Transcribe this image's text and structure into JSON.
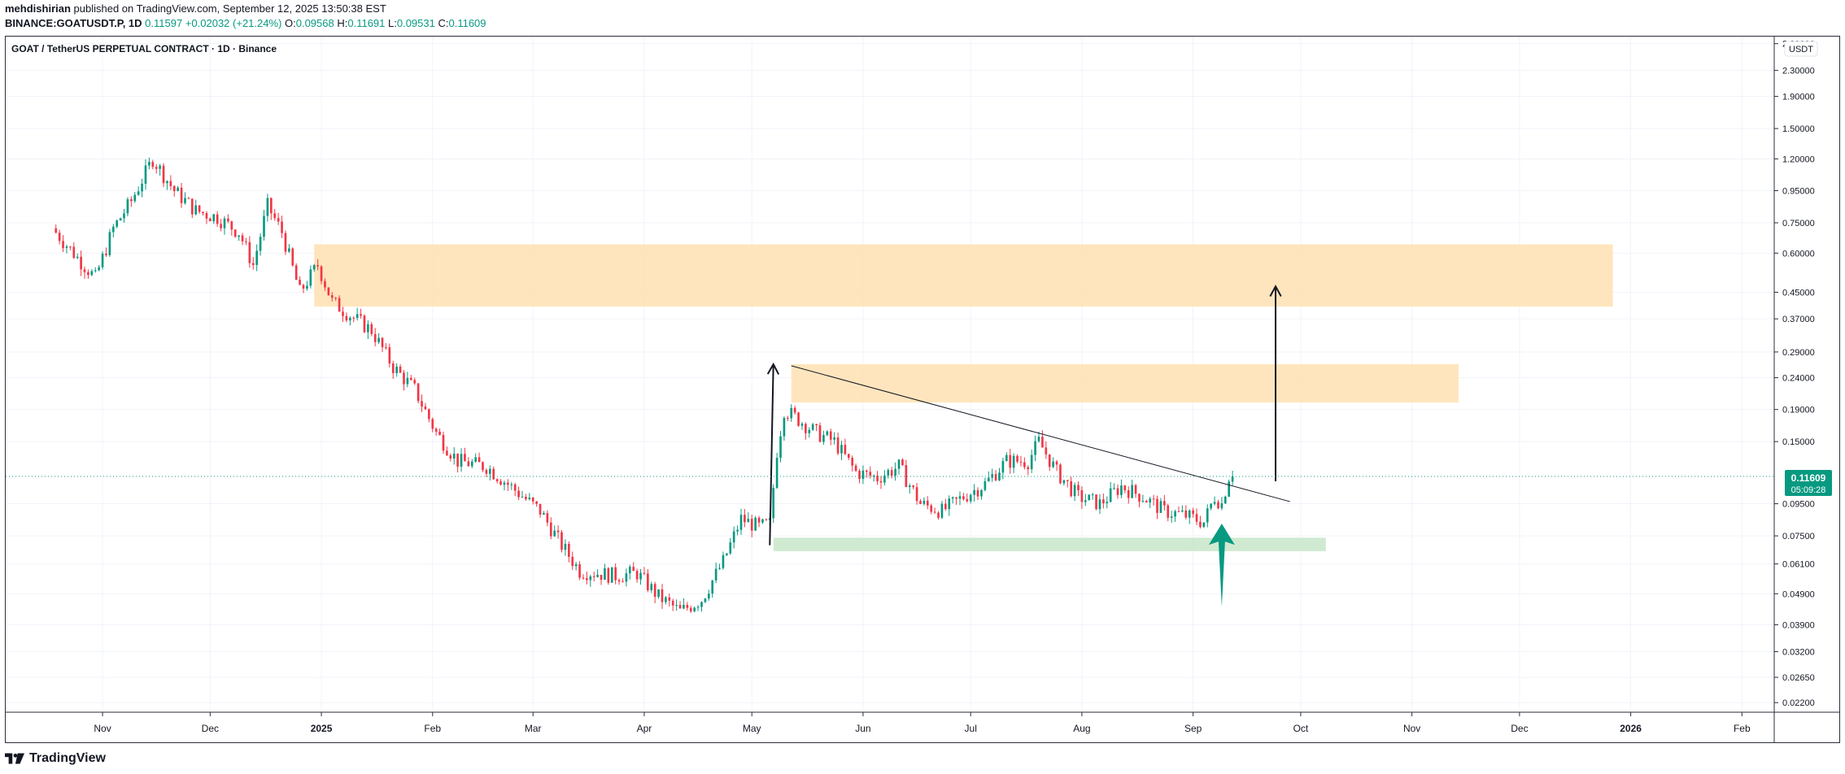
{
  "header": {
    "publisher": "mehdishirian",
    "published_text": " published on TradingView.com, September 12, 2025 13:50:38 EST",
    "symbol": "BINANCE:GOATUSDT.P, 1D",
    "last": "0.11597",
    "change": "+0.02032 (+21.24%)",
    "o_label": "O:",
    "o": "0.09568",
    "h_label": "H:",
    "h": "0.11691",
    "l_label": "L:",
    "l": "0.09531",
    "c_label": "C:",
    "c": "0.11609"
  },
  "footer": {
    "brand": "TradingView"
  },
  "chart_data": {
    "type": "candlestick",
    "title": "GOAT / TetherUS PERPETUAL CONTRACT · 1D · Binance",
    "currency": "USDT",
    "y_scale": "log",
    "ylim": [
      0.0205,
      2.95
    ],
    "x_range": [
      "2024-10-05",
      "2026-02-10"
    ],
    "y_ticks": [
      "2.80000",
      "2.30000",
      "1.90000",
      "1.50000",
      "1.20000",
      "0.95000",
      "0.75000",
      "0.60000",
      "0.45000",
      "0.37000",
      "0.29000",
      "0.24000",
      "0.19000",
      "0.15000",
      "0.09500",
      "0.07500",
      "0.06100",
      "0.04900",
      "0.03900",
      "0.03200",
      "0.02650",
      "0.02200"
    ],
    "x_ticks": [
      {
        "label": "Nov",
        "date": "2024-11-01"
      },
      {
        "label": "Dec",
        "date": "2024-12-01"
      },
      {
        "label": "2025",
        "date": "2025-01-01"
      },
      {
        "label": "Feb",
        "date": "2025-02-01"
      },
      {
        "label": "Mar",
        "date": "2025-03-01"
      },
      {
        "label": "Apr",
        "date": "2025-04-01"
      },
      {
        "label": "May",
        "date": "2025-05-01"
      },
      {
        "label": "Jun",
        "date": "2025-06-01"
      },
      {
        "label": "Jul",
        "date": "2025-07-01"
      },
      {
        "label": "Aug",
        "date": "2025-08-01"
      },
      {
        "label": "Sep",
        "date": "2025-09-01"
      },
      {
        "label": "Oct",
        "date": "2025-10-01"
      },
      {
        "label": "Nov",
        "date": "2025-11-01"
      },
      {
        "label": "Dec",
        "date": "2025-12-01"
      },
      {
        "label": "2026",
        "date": "2026-01-01"
      },
      {
        "label": "Feb",
        "date": "2026-02-01"
      }
    ],
    "price_path": [
      [
        "2024-10-19",
        0.72
      ],
      [
        "2024-10-26",
        0.58
      ],
      [
        "2024-10-31",
        0.5
      ],
      [
        "2024-11-05",
        0.72
      ],
      [
        "2024-11-10",
        0.88
      ],
      [
        "2024-11-16",
        1.2
      ],
      [
        "2024-11-22",
        0.95
      ],
      [
        "2024-11-28",
        0.82
      ],
      [
        "2024-12-04",
        0.78
      ],
      [
        "2024-12-10",
        0.7
      ],
      [
        "2024-12-14",
        0.55
      ],
      [
        "2024-12-18",
        0.85
      ],
      [
        "2024-12-22",
        0.7
      ],
      [
        "2024-12-27",
        0.45
      ],
      [
        "2025-01-01",
        0.55
      ],
      [
        "2025-01-05",
        0.42
      ],
      [
        "2025-01-10",
        0.38
      ],
      [
        "2025-01-16",
        0.34
      ],
      [
        "2025-01-22",
        0.26
      ],
      [
        "2025-01-28",
        0.22
      ],
      [
        "2025-02-03",
        0.16
      ],
      [
        "2025-02-09",
        0.13
      ],
      [
        "2025-02-17",
        0.125
      ],
      [
        "2025-02-25",
        0.105
      ],
      [
        "2025-03-04",
        0.09
      ],
      [
        "2025-03-10",
        0.07
      ],
      [
        "2025-03-15",
        0.058
      ],
      [
        "2025-03-25",
        0.056
      ],
      [
        "2025-03-31",
        0.057
      ],
      [
        "2025-04-06",
        0.048
      ],
      [
        "2025-04-12",
        0.043
      ],
      [
        "2025-04-18",
        0.047
      ],
      [
        "2025-04-24",
        0.062
      ],
      [
        "2025-04-29",
        0.085
      ],
      [
        "2025-05-04",
        0.08
      ],
      [
        "2025-05-07",
        0.082
      ],
      [
        "2025-05-09",
        0.14
      ],
      [
        "2025-05-11",
        0.19
      ],
      [
        "2025-05-14",
        0.18
      ],
      [
        "2025-05-20",
        0.16
      ],
      [
        "2025-05-25",
        0.15
      ],
      [
        "2025-05-31",
        0.12
      ],
      [
        "2025-06-06",
        0.115
      ],
      [
        "2025-06-12",
        0.125
      ],
      [
        "2025-06-18",
        0.095
      ],
      [
        "2025-06-24",
        0.09
      ],
      [
        "2025-06-30",
        0.1
      ],
      [
        "2025-07-06",
        0.11
      ],
      [
        "2025-07-12",
        0.13
      ],
      [
        "2025-07-18",
        0.13
      ],
      [
        "2025-07-21",
        0.15
      ],
      [
        "2025-07-26",
        0.12
      ],
      [
        "2025-08-01",
        0.1
      ],
      [
        "2025-08-07",
        0.095
      ],
      [
        "2025-08-13",
        0.108
      ],
      [
        "2025-08-19",
        0.1
      ],
      [
        "2025-08-25",
        0.09
      ],
      [
        "2025-08-31",
        0.087
      ],
      [
        "2025-09-05",
        0.083
      ],
      [
        "2025-09-08",
        0.1
      ],
      [
        "2025-09-10",
        0.095
      ],
      [
        "2025-09-12",
        0.11609
      ]
    ],
    "current_price": {
      "value": 0.11609,
      "label": "0.11609",
      "countdown": "05:09:28"
    },
    "zones": [
      {
        "color": "#ffe0b2",
        "from": "2024-12-30",
        "to": "2025-12-27",
        "low": 0.405,
        "high": 0.64
      },
      {
        "color": "#ffe0b2",
        "from": "2025-05-12",
        "to": "2025-11-14",
        "low": 0.2,
        "high": 0.265
      },
      {
        "color": "#c8e6c9",
        "from": "2025-05-07",
        "to": "2025-10-08",
        "low": 0.067,
        "high": 0.074
      }
    ],
    "trendline": {
      "from": [
        "2025-05-12",
        0.262
      ],
      "to": [
        "2025-09-28",
        0.0965
      ]
    },
    "arrows": [
      {
        "color": "#131722",
        "from": [
          "2025-05-06",
          0.07
        ],
        "to": [
          "2025-05-07",
          0.265
        ]
      },
      {
        "color": "#131722",
        "from": [
          "2025-09-24",
          0.112
        ],
        "to": [
          "2025-09-24",
          0.47
        ]
      },
      {
        "color": "#089981",
        "from": [
          "2025-09-09",
          0.0445
        ],
        "to": [
          "2025-09-09",
          0.082
        ]
      }
    ],
    "colors": {
      "up": "#089981",
      "down": "#f23645",
      "grid": "#f0f3fa",
      "axis": "#131722",
      "text": "#131722"
    }
  }
}
